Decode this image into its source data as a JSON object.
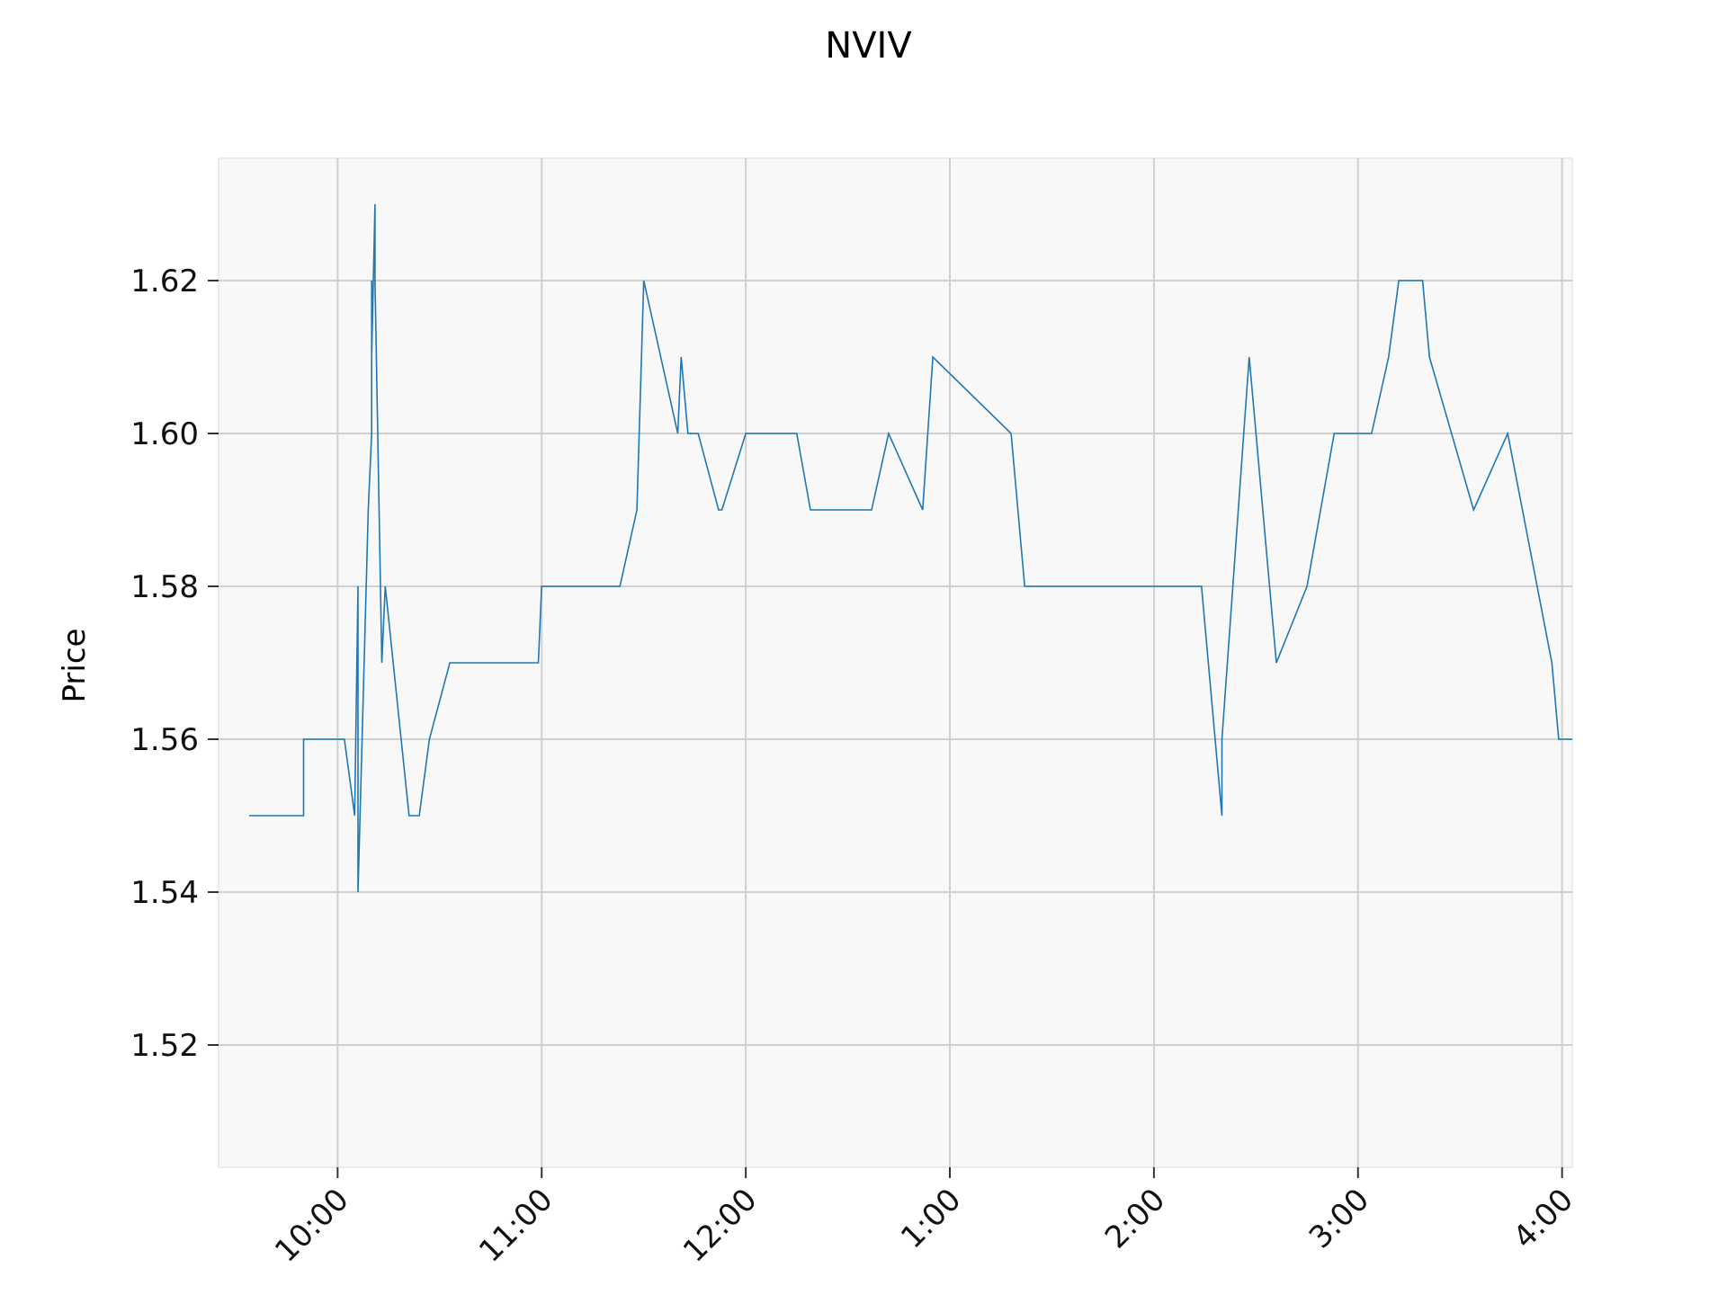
{
  "chart_data": {
    "type": "line",
    "title": "NVIV",
    "xlabel": "",
    "ylabel": "Price",
    "grid": true,
    "legend": "none",
    "colors": {
      "line": "#1f77b4",
      "plot_bg": "#f8f8f8",
      "grid": "#d0d0d0"
    },
    "x_unit": "time of day",
    "xlim": [
      "9:25",
      "16:03"
    ],
    "ylim": [
      1.504,
      1.636
    ],
    "x_ticks": [
      "10:00",
      "11:00",
      "12:00",
      "1:00",
      "2:00",
      "3:00",
      "4:00"
    ],
    "y_ticks": [
      "1.52",
      "1.54",
      "1.56",
      "1.58",
      "1.60",
      "1.62"
    ],
    "series": [
      {
        "x": [
          "9:34",
          "9:50",
          "9:50",
          "10:02",
          "10:05",
          "10:06",
          "10:06",
          "10:06",
          "10:09",
          "10:10",
          "10:10",
          "10:10",
          "10:11",
          "10:11",
          "10:13",
          "10:14",
          "10:21",
          "10:24",
          "10:27",
          "10:33",
          "10:59",
          "11:00",
          "11:23",
          "11:28",
          "11:30",
          "11:40",
          "11:41",
          "11:43",
          "11:46",
          "11:52",
          "11:53",
          "12:00",
          "12:15",
          "12:19",
          "12:37",
          "12:42",
          "12:52",
          "12:55",
          "13:18",
          "13:22",
          "13:55",
          "14:14",
          "14:20",
          "14:20",
          "14:28",
          "14:36",
          "14:45",
          "14:53",
          "15:04",
          "15:09",
          "15:12",
          "15:19",
          "15:21",
          "15:34",
          "15:44",
          "15:57",
          "15:59",
          "16:03"
        ],
        "y": [
          1.55,
          1.55,
          1.56,
          1.56,
          1.55,
          1.58,
          1.54,
          1.54,
          1.59,
          1.6,
          1.62,
          1.61,
          1.63,
          1.62,
          1.57,
          1.58,
          1.55,
          1.55,
          1.56,
          1.57,
          1.57,
          1.58,
          1.58,
          1.59,
          1.62,
          1.6,
          1.61,
          1.6,
          1.6,
          1.59,
          1.59,
          1.6,
          1.6,
          1.59,
          1.59,
          1.6,
          1.59,
          1.61,
          1.6,
          1.58,
          1.58,
          1.58,
          1.55,
          1.56,
          1.61,
          1.57,
          1.58,
          1.6,
          1.6,
          1.61,
          1.62,
          1.62,
          1.61,
          1.59,
          1.6,
          1.57,
          1.56,
          1.56
        ]
      }
    ]
  }
}
